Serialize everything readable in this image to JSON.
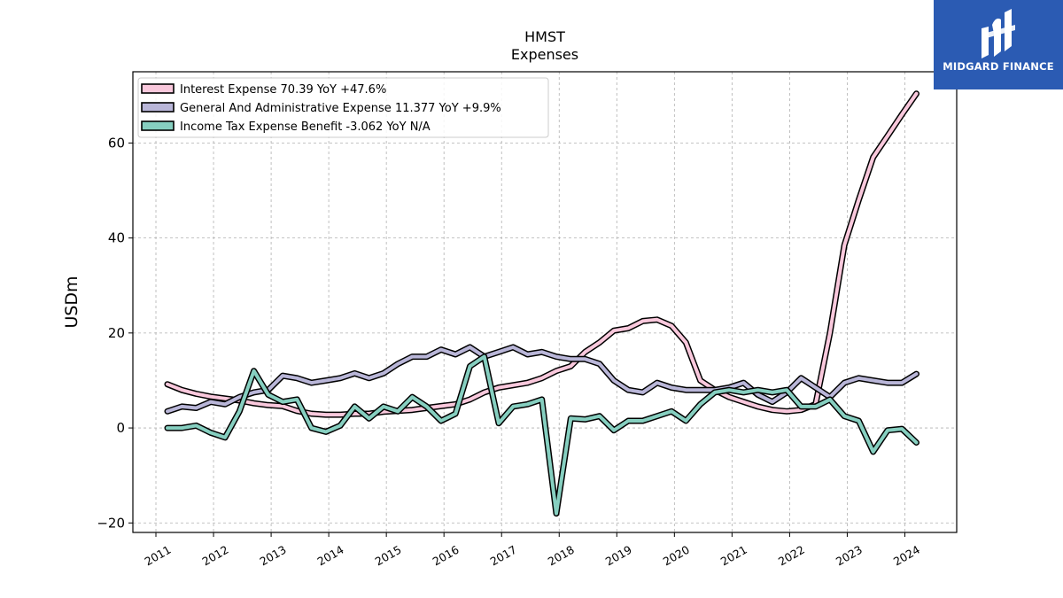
{
  "colors": {
    "interest": "#f9c8dc",
    "ga": "#b9b6d8",
    "tax": "#86cfc0",
    "logo_bg": "#2b5bb3"
  },
  "logo": {
    "text": "MIDGARD FINANCE",
    "icon": "midgard-logo-icon"
  },
  "chart_data": {
    "type": "line",
    "title": "HMST",
    "subtitle": "Expenses",
    "ylabel": "USDm",
    "xlabel": "",
    "ylim": [
      -22,
      75
    ],
    "xlim": [
      2010.6,
      2024.9
    ],
    "grid": true,
    "legend_position": "top-left",
    "x_ticks": [
      2011,
      2012,
      2013,
      2014,
      2015,
      2016,
      2017,
      2018,
      2019,
      2020,
      2021,
      2022,
      2023,
      2024
    ],
    "y_ticks": [
      -20,
      0,
      20,
      40,
      60
    ],
    "y_tick_labels": [
      "−20",
      "0",
      "20",
      "40",
      "60"
    ],
    "series": [
      {
        "key": "interest",
        "legend": "Interest Expense  70.39 YoY +47.6%",
        "x": [
          2011.2,
          2011.45,
          2011.7,
          2011.95,
          2012.2,
          2012.45,
          2012.7,
          2012.95,
          2013.2,
          2013.45,
          2013.7,
          2013.95,
          2014.2,
          2014.45,
          2014.7,
          2014.95,
          2015.2,
          2015.45,
          2015.7,
          2015.95,
          2016.2,
          2016.45,
          2016.7,
          2016.95,
          2017.2,
          2017.45,
          2017.7,
          2017.95,
          2018.2,
          2018.45,
          2018.7,
          2018.95,
          2019.2,
          2019.45,
          2019.7,
          2019.95,
          2020.2,
          2020.45,
          2020.7,
          2020.95,
          2021.2,
          2021.45,
          2021.7,
          2021.95,
          2022.2,
          2022.45,
          2022.7,
          2022.95,
          2023.2,
          2023.45,
          2023.7,
          2023.95,
          2024.2
        ],
        "values": [
          9.2,
          8.0,
          7.2,
          6.6,
          6.2,
          5.8,
          5.2,
          4.8,
          4.6,
          3.6,
          3.0,
          2.8,
          2.8,
          3.0,
          3.0,
          3.4,
          3.6,
          3.8,
          4.2,
          4.6,
          5.0,
          6.0,
          7.5,
          8.5,
          9.0,
          9.5,
          10.5,
          12.0,
          13.0,
          16.0,
          18.0,
          20.5,
          21.0,
          22.5,
          22.8,
          21.5,
          18.0,
          10.0,
          8.0,
          6.5,
          5.5,
          4.5,
          3.8,
          3.5,
          3.8,
          5.0,
          20.0,
          38.5,
          48.0,
          57.0,
          61.5,
          66.0,
          70.39
        ]
      },
      {
        "key": "ga",
        "legend": "General And Administrative Expense  11.377 YoY +9.9%",
        "x": [
          2011.2,
          2011.45,
          2011.7,
          2011.95,
          2012.2,
          2012.45,
          2012.7,
          2012.95,
          2013.2,
          2013.45,
          2013.7,
          2013.95,
          2014.2,
          2014.45,
          2014.7,
          2014.95,
          2015.2,
          2015.45,
          2015.7,
          2015.95,
          2016.2,
          2016.45,
          2016.7,
          2016.95,
          2017.2,
          2017.45,
          2017.7,
          2017.95,
          2018.2,
          2018.45,
          2018.7,
          2018.95,
          2019.2,
          2019.45,
          2019.7,
          2019.95,
          2020.2,
          2020.45,
          2020.7,
          2020.95,
          2021.2,
          2021.45,
          2021.7,
          2021.95,
          2022.2,
          2022.45,
          2022.7,
          2022.95,
          2023.2,
          2023.45,
          2023.7,
          2023.95,
          2024.2
        ],
        "values": [
          3.5,
          4.5,
          4.2,
          5.5,
          5.0,
          6.5,
          7.5,
          8.0,
          11.0,
          10.5,
          9.5,
          10.0,
          10.5,
          11.5,
          10.5,
          11.5,
          13.5,
          15.0,
          15.0,
          16.5,
          15.5,
          17.0,
          15.0,
          16.0,
          17.0,
          15.5,
          16.0,
          15.0,
          14.5,
          14.5,
          13.5,
          10.0,
          8.0,
          7.5,
          9.5,
          8.5,
          8.0,
          8.0,
          8.0,
          8.5,
          9.5,
          7.0,
          5.5,
          7.5,
          10.5,
          8.5,
          6.5,
          9.5,
          10.5,
          10.0,
          9.5,
          9.5,
          11.377
        ]
      },
      {
        "key": "tax",
        "legend": "Income Tax Expense Benefit  -3.062 YoY N/A",
        "x": [
          2011.2,
          2011.45,
          2011.7,
          2011.95,
          2012.2,
          2012.45,
          2012.7,
          2012.95,
          2013.2,
          2013.45,
          2013.7,
          2013.95,
          2014.2,
          2014.45,
          2014.7,
          2014.95,
          2015.2,
          2015.45,
          2015.7,
          2015.95,
          2016.2,
          2016.45,
          2016.7,
          2016.95,
          2017.2,
          2017.45,
          2017.7,
          2017.95,
          2018.2,
          2018.45,
          2018.7,
          2018.95,
          2019.2,
          2019.45,
          2019.7,
          2019.95,
          2020.2,
          2020.45,
          2020.7,
          2020.95,
          2021.2,
          2021.45,
          2021.7,
          2021.95,
          2022.2,
          2022.45,
          2022.7,
          2022.95,
          2023.2,
          2023.45,
          2023.7,
          2023.95,
          2024.2
        ],
        "values": [
          0,
          0,
          0.5,
          -1.0,
          -2.0,
          3.5,
          12.0,
          7.0,
          5.5,
          6.0,
          0,
          -0.8,
          0.5,
          4.5,
          2.0,
          4.5,
          3.5,
          6.5,
          4.5,
          1.5,
          3.0,
          13.0,
          15.0,
          1.0,
          4.5,
          5.0,
          6.0,
          -18.0,
          2.0,
          1.8,
          2.5,
          -0.5,
          1.5,
          1.5,
          2.5,
          3.5,
          1.5,
          5.0,
          7.5,
          8.0,
          7.5,
          8.0,
          7.5,
          8.0,
          4.5,
          4.5,
          6.0,
          2.5,
          1.5,
          -5.0,
          -0.5,
          -0.2,
          -3.062
        ]
      }
    ]
  }
}
